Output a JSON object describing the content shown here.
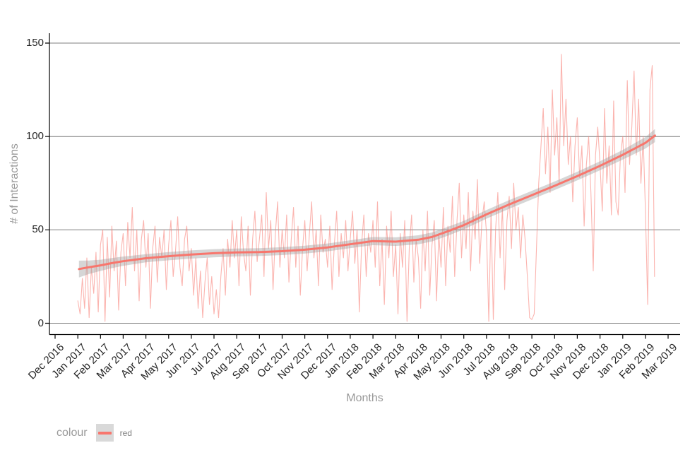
{
  "chart_data": {
    "type": "line",
    "title": "",
    "xlabel": "Months",
    "ylabel": "# of Interactions",
    "x_unit": "month index, 0 = Dec 2016 tick",
    "x_tick_labels": [
      "Dec 2016",
      "Jan 2017",
      "Feb 2017",
      "Mar 2017",
      "Apr 2017",
      "May 2017",
      "Jun 2017",
      "Jul 2017",
      "Aug 2017",
      "Sep 2017",
      "Oct 2017",
      "Nov 2017",
      "Dec 2017",
      "Jan 2018",
      "Feb 2018",
      "Mar 2018",
      "Apr 2018",
      "May 2018",
      "Jun 2018",
      "Jul 2018",
      "Aug 2018",
      "Sep 2018",
      "Oct 2018",
      "Nov 2018",
      "Dec 2018",
      "Jan 2019",
      "Feb 2019",
      "Mar 2019"
    ],
    "y_ticks": [
      0,
      50,
      100,
      150
    ],
    "ylim": [
      0,
      150
    ],
    "grid": "horizontal-major-only",
    "legend": {
      "title": "colour",
      "position": "bottom-left",
      "entries": [
        {
          "label": "red",
          "color": "#f8766d"
        }
      ]
    },
    "series": [
      {
        "name": "daily-interactions-raw",
        "kind": "noisy-line",
        "color": "#f8766d",
        "opacity": 0.55,
        "x_start": 1.0,
        "x_step": 0.1,
        "values": [
          12,
          5,
          24,
          8,
          35,
          3,
          30,
          16,
          38,
          6,
          42,
          50,
          1,
          46,
          14,
          52,
          28,
          44,
          7,
          38,
          48,
          20,
          54,
          35,
          62,
          28,
          50,
          12,
          45,
          55,
          30,
          48,
          8,
          40,
          52,
          22,
          46,
          35,
          50,
          18,
          42,
          55,
          25,
          38,
          57,
          30,
          20,
          45,
          52,
          28,
          40,
          15,
          35,
          8,
          28,
          3,
          22,
          35,
          10,
          25,
          5,
          18,
          3,
          25,
          40,
          15,
          45,
          30,
          55,
          35,
          50,
          20,
          57,
          38,
          28,
          52,
          15,
          45,
          60,
          33,
          45,
          58,
          25,
          70,
          40,
          55,
          18,
          48,
          65,
          30,
          50,
          35,
          58,
          22,
          45,
          62,
          30,
          52,
          15,
          40,
          55,
          28,
          48,
          65,
          35,
          50,
          20,
          58,
          38,
          45,
          30,
          52,
          18,
          42,
          60,
          25,
          48,
          35,
          55,
          28,
          45,
          60,
          32,
          50,
          6,
          42,
          58,
          25,
          48,
          38,
          55,
          30,
          65,
          20,
          45,
          10,
          52,
          35,
          60,
          25,
          42,
          5,
          48,
          30,
          55,
          1,
          40,
          58,
          22,
          45,
          35,
          8,
          50,
          28,
          60,
          15,
          42,
          55,
          12,
          48,
          30,
          62,
          20,
          52,
          38,
          68,
          25,
          55,
          75,
          35,
          58,
          40,
          70,
          28,
          60,
          45,
          77,
          32,
          55,
          65,
          48,
          1,
          60,
          2,
          50,
          70,
          35,
          62,
          18,
          55,
          68,
          40,
          75,
          50,
          62,
          35,
          58,
          45,
          25,
          3,
          2,
          5,
          40,
          75,
          95,
          115,
          80,
          105,
          70,
          125,
          90,
          110,
          75,
          144,
          95,
          120,
          85,
          100,
          65,
          95,
          110,
          78,
          95,
          52,
          85,
          100,
          70,
          28,
          90,
          105,
          85,
          60,
          115,
          75,
          95,
          58,
          119,
          65,
          58,
          90,
          100,
          70,
          130,
          85,
          105,
          135,
          90,
          120,
          75,
          100,
          60,
          10,
          125,
          138,
          25
        ]
      },
      {
        "name": "loess-smooth-trend",
        "kind": "smooth-line-with-ribbon",
        "color": "#f8766d",
        "ribbon_color": "#999999",
        "ribbon_opacity": 0.4,
        "points_xyh": [
          [
            1.05,
            29,
            4.5
          ],
          [
            1.5,
            30,
            3.6
          ],
          [
            2,
            31,
            3
          ],
          [
            2.5,
            32.2,
            2.7
          ],
          [
            3,
            33.2,
            2.5
          ],
          [
            3.5,
            34,
            2.3
          ],
          [
            4,
            34.8,
            2.2
          ],
          [
            5,
            35.9,
            2.2
          ],
          [
            6,
            36.8,
            2.2
          ],
          [
            7,
            37.5,
            2.2
          ],
          [
            8,
            37.9,
            2.1
          ],
          [
            9,
            38.1,
            2.1
          ],
          [
            10,
            38.6,
            2.1
          ],
          [
            11,
            39.4,
            2.1
          ],
          [
            12,
            40.6,
            2.1
          ],
          [
            13,
            42.3,
            2.1
          ],
          [
            14,
            44,
            2.2
          ],
          [
            15,
            43.7,
            2.3
          ],
          [
            16,
            44.7,
            2.4
          ],
          [
            16.6,
            46.2,
            2.4
          ],
          [
            17.2,
            48.8,
            2.4
          ],
          [
            18,
            52.5,
            2.3
          ],
          [
            19,
            58.3,
            2.3
          ],
          [
            20,
            63.6,
            2.3
          ],
          [
            21,
            68.6,
            2.3
          ],
          [
            22,
            73.6,
            2.3
          ],
          [
            23,
            78.8,
            2.3
          ],
          [
            24,
            84.3,
            2.4
          ],
          [
            25,
            90.2,
            2.6
          ],
          [
            26,
            96.6,
            3.1
          ],
          [
            26.42,
            100.5,
            3.5
          ]
        ]
      }
    ],
    "style": {
      "gridline_color": "#7f7f7f",
      "axis_color": "#000000",
      "tick_label_color": "#262626",
      "axis_title_color": "#999999",
      "panel_background": "#ffffff"
    }
  }
}
